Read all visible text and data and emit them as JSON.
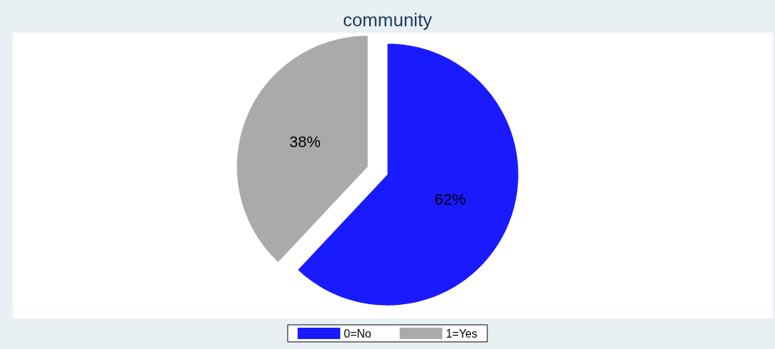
{
  "chart_data": {
    "type": "pie",
    "title": "community",
    "categories": [
      "0=No",
      "1=Yes"
    ],
    "values": [
      62,
      38
    ],
    "colors": [
      "#1a1aff",
      "#aaaaaa"
    ],
    "value_labels": [
      "62%",
      "38%"
    ],
    "legend": "bottom"
  }
}
